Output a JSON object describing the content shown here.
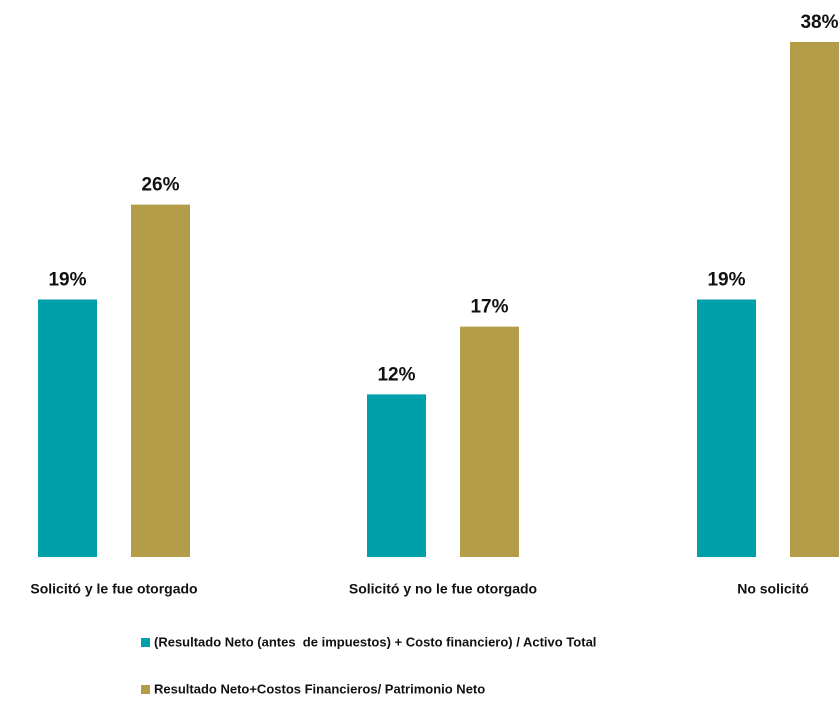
{
  "chart_data": {
    "type": "bar",
    "categories": [
      "Solicitó y le fue otorgado",
      "Solicitó y no le fue otorgado",
      "No solicitó"
    ],
    "series": [
      {
        "name": "(Resultado Neto (antes  de impuestos) + Costo financiero) / Activo Total",
        "color": "#00a0aa",
        "values": [
          19,
          12,
          19
        ],
        "value_labels": [
          "19%",
          "12%",
          "19%"
        ]
      },
      {
        "name": "Resultado Neto+Costos Financieros/ Patrimonio Neto",
        "color": "#b39d48",
        "values": [
          26,
          17,
          38
        ],
        "value_labels": [
          "26%",
          "17%",
          "38%"
        ]
      }
    ],
    "ylim": [
      0,
      38
    ]
  }
}
